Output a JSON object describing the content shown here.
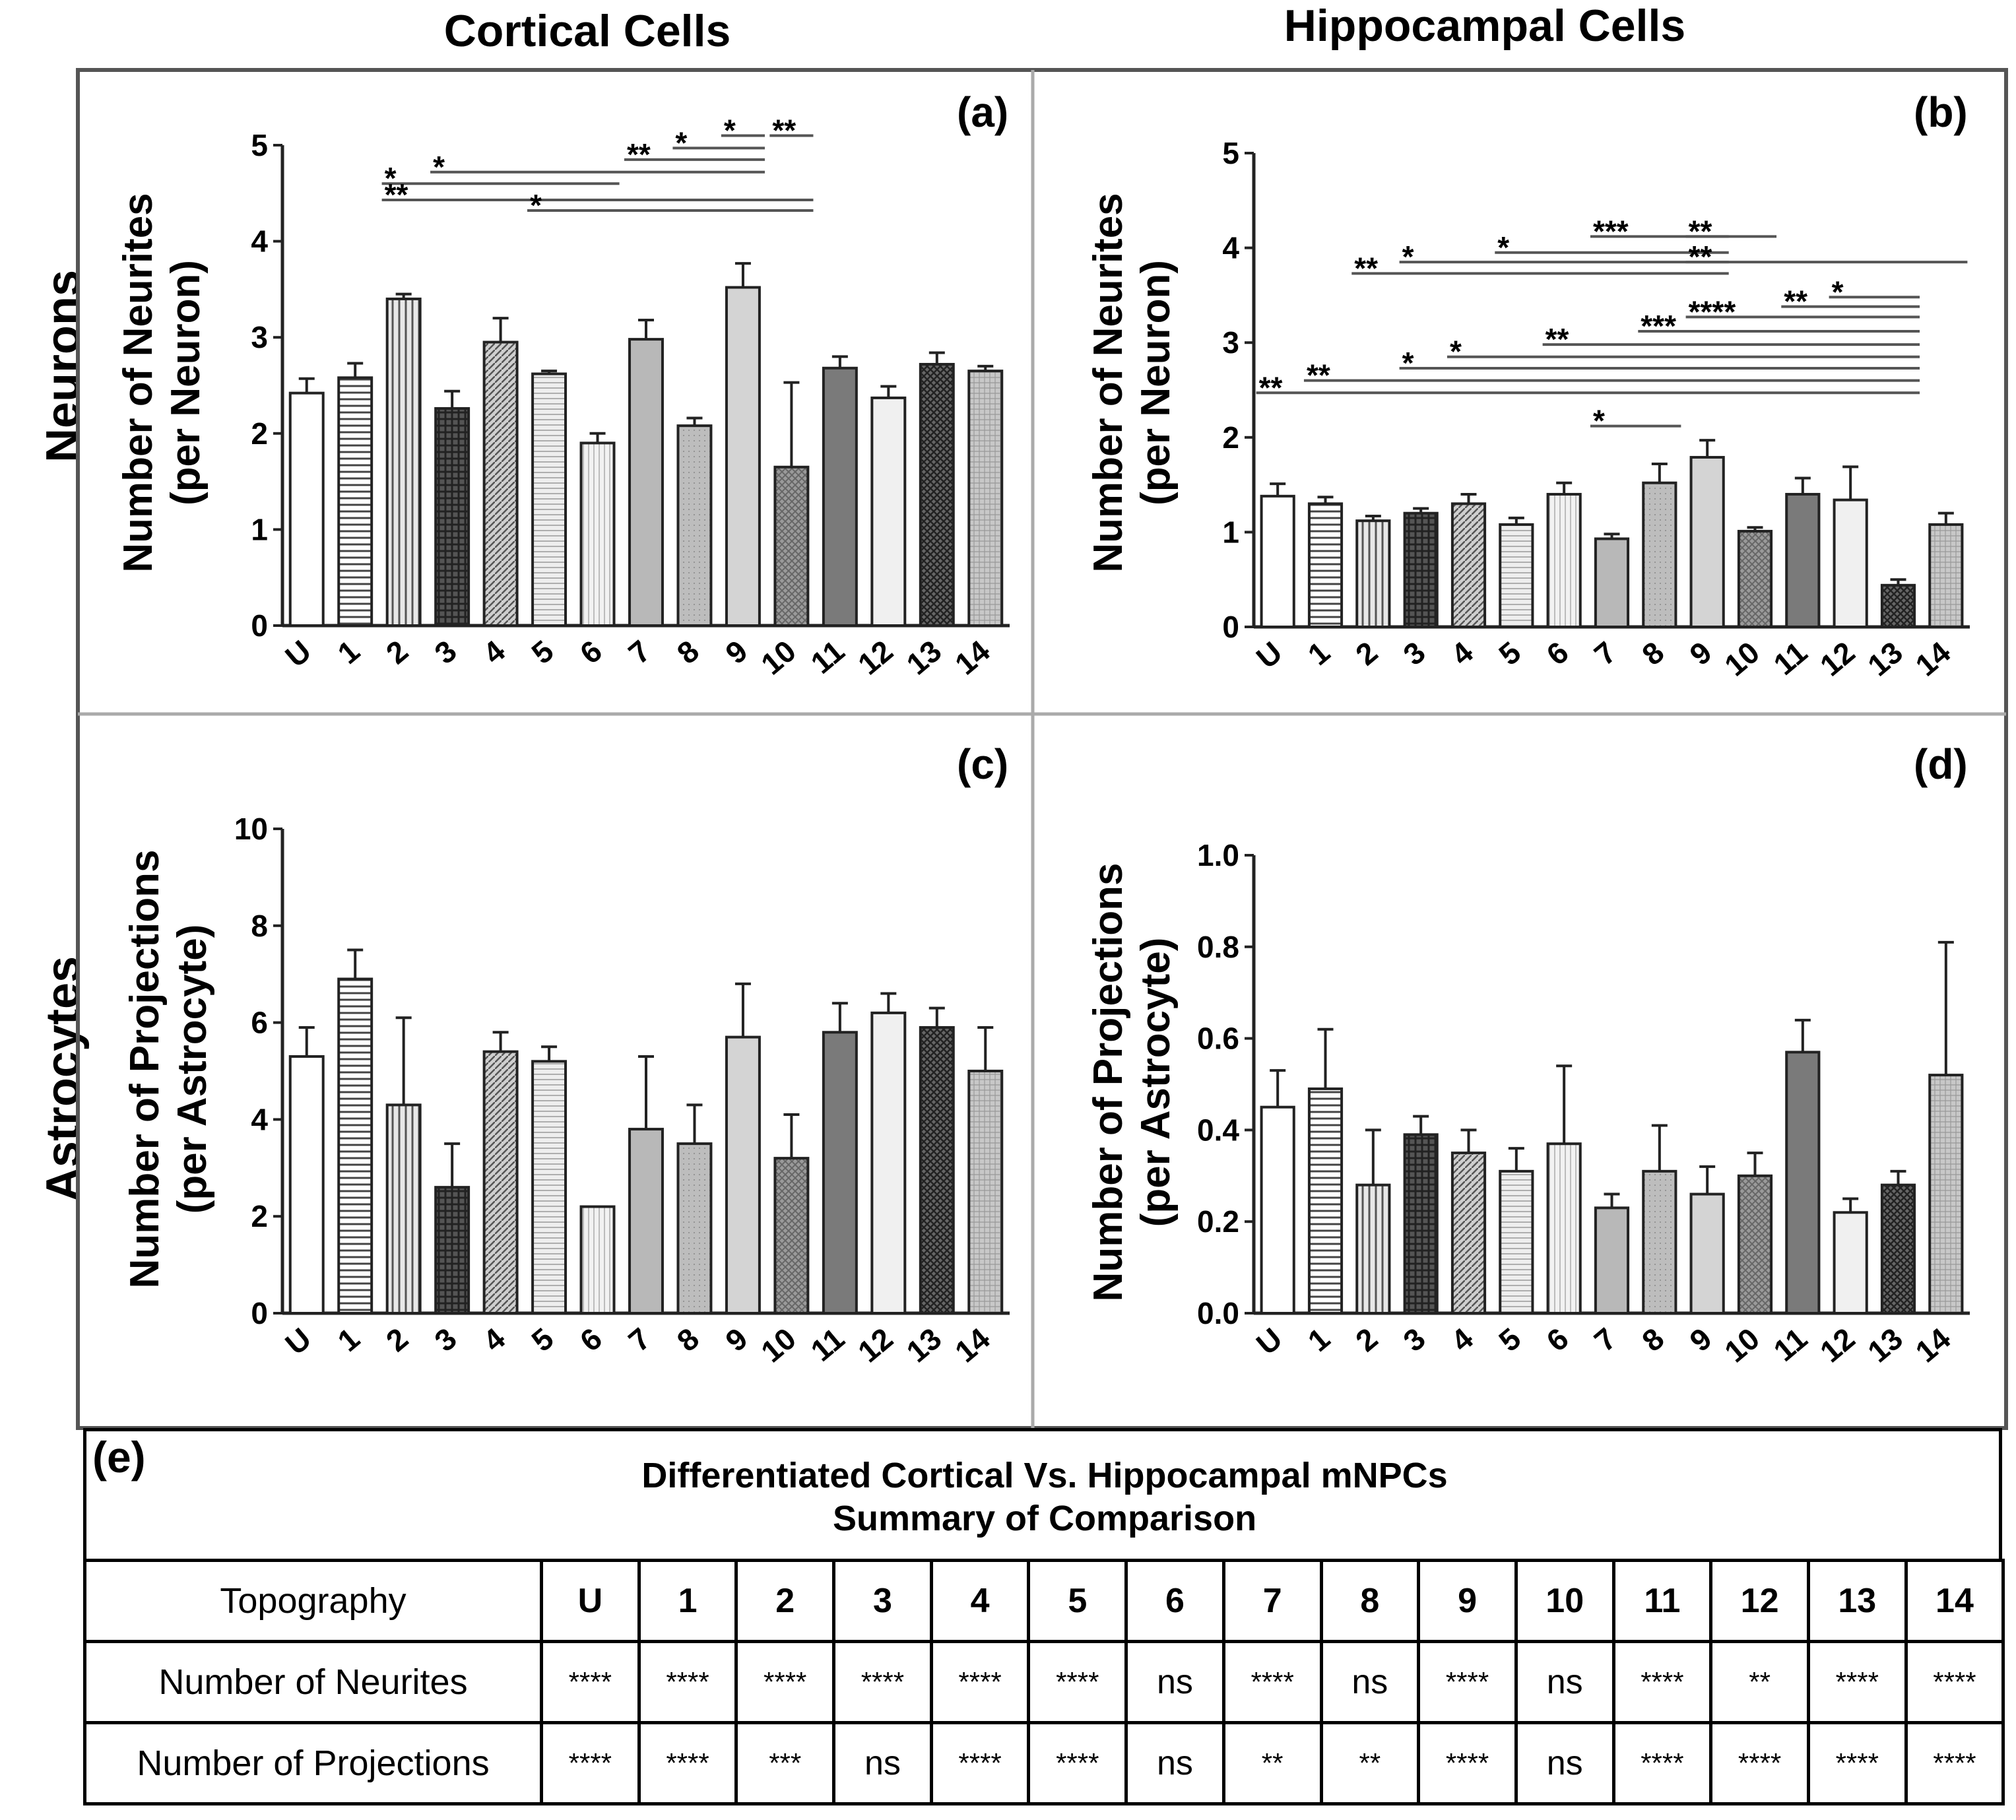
{
  "column_titles": {
    "left": "Cortical Cells",
    "right": "Hippocampal Cells"
  },
  "row_titles": {
    "top": "Neurons",
    "bottom": "Astrocytes"
  },
  "panel_letters": [
    "(a)",
    "(b)",
    "(c)",
    "(d)",
    "(e)"
  ],
  "colors": {
    "border": "#555555",
    "divider": "#aaaaaa",
    "bar_edge": "#222222",
    "bracket": "#555555"
  },
  "chart_data": [
    {
      "panel": "(a)",
      "type": "bar",
      "title": "Cortical Cells - Neurons",
      "ylabel_line1": "Number of Neurites",
      "ylabel_line2": "(per Neuron)",
      "ylim": [
        0,
        5
      ],
      "yticks": [
        "0",
        "1",
        "2",
        "3",
        "4",
        "5"
      ],
      "ytick_values": [
        0,
        1,
        2,
        3,
        4,
        5
      ],
      "categories": [
        "U",
        "1",
        "2",
        "3",
        "4",
        "5",
        "6",
        "7",
        "8",
        "9",
        "10",
        "11",
        "12",
        "13",
        "14"
      ],
      "values": [
        2.42,
        2.58,
        3.4,
        2.26,
        2.95,
        2.62,
        1.9,
        2.98,
        2.08,
        3.52,
        1.65,
        2.68,
        2.37,
        2.72,
        2.65
      ],
      "errors": [
        0.15,
        0.15,
        0.05,
        0.18,
        0.25,
        0.03,
        0.1,
        0.2,
        0.08,
        0.25,
        0.88,
        0.12,
        0.12,
        0.12,
        0.05
      ],
      "significance": [
        {
          "from": 2,
          "to": 6,
          "label": "*",
          "value": 4.6
        },
        {
          "from": 2,
          "to": 10,
          "label": "**",
          "value": 4.43
        },
        {
          "from": 3,
          "to": 9,
          "label": "*",
          "value": 4.72
        },
        {
          "from": 5,
          "to": 10,
          "label": "*",
          "value": 4.32
        },
        {
          "from": 7,
          "to": 9,
          "label": "**",
          "value": 4.85
        },
        {
          "from": 8,
          "to": 9,
          "label": "*",
          "value": 4.97
        },
        {
          "from": 9,
          "to": 9,
          "label": "*",
          "value": 5.1
        },
        {
          "from": 10,
          "to": 10,
          "label": "**",
          "value": 5.1
        }
      ]
    },
    {
      "panel": "(b)",
      "type": "bar",
      "title": "Hippocampal Cells - Neurons",
      "ylabel_line1": "Number of Neurites",
      "ylabel_line2": "(per Neuron)",
      "ylim": [
        0,
        5
      ],
      "yticks": [
        "0",
        "1",
        "2",
        "3",
        "4",
        "5"
      ],
      "ytick_values": [
        0,
        1,
        2,
        3,
        4,
        5
      ],
      "categories": [
        "U",
        "1",
        "2",
        "3",
        "4",
        "5",
        "6",
        "7",
        "8",
        "9",
        "10",
        "11",
        "12",
        "13",
        "14"
      ],
      "values": [
        1.38,
        1.3,
        1.12,
        1.2,
        1.3,
        1.08,
        1.4,
        0.93,
        1.52,
        1.79,
        1.01,
        1.4,
        1.34,
        0.44,
        1.08
      ],
      "errors": [
        0.13,
        0.07,
        0.05,
        0.05,
        0.1,
        0.07,
        0.12,
        0.05,
        0.2,
        0.18,
        0.04,
        0.17,
        0.35,
        0.06,
        0.12
      ],
      "significance": [
        {
          "from": 7,
          "to": 9,
          "label": "***",
          "value": 4.12
        },
        {
          "from": 9,
          "to": 10,
          "label": "**",
          "value": 4.12
        },
        {
          "from": 5,
          "to": 9,
          "label": "*",
          "value": 3.95
        },
        {
          "from": 3,
          "to": 9,
          "label": "*",
          "value": 3.85
        },
        {
          "from": 2,
          "to": 9,
          "label": "**",
          "value": 3.73
        },
        {
          "from": 9,
          "to": 14,
          "label": "**",
          "value": 3.85
        },
        {
          "from": 12,
          "to": 13,
          "label": "*",
          "value": 3.48
        },
        {
          "from": 11,
          "to": 13,
          "label": "**",
          "value": 3.38
        },
        {
          "from": 9,
          "to": 13,
          "label": "****",
          "value": 3.27
        },
        {
          "from": 8,
          "to": 13,
          "label": "***",
          "value": 3.12
        },
        {
          "from": 6,
          "to": 13,
          "label": "**",
          "value": 2.98
        },
        {
          "from": 4,
          "to": 13,
          "label": "*",
          "value": 2.85
        },
        {
          "from": 3,
          "to": 13,
          "label": "*",
          "value": 2.73
        },
        {
          "from": 1,
          "to": 13,
          "label": "**",
          "value": 2.6
        },
        {
          "from": 0,
          "to": 13,
          "label": "**",
          "value": 2.47
        },
        {
          "from": 7,
          "to": 8,
          "label": "*",
          "value": 2.12
        }
      ]
    },
    {
      "panel": "(c)",
      "type": "bar",
      "title": "Cortical Cells - Astrocytes",
      "ylabel_line1": "Number of Projections",
      "ylabel_line2": "(per Astrocyte)",
      "ylim": [
        0,
        10
      ],
      "yticks": [
        "0",
        "2",
        "4",
        "6",
        "8",
        "10"
      ],
      "ytick_values": [
        0,
        2,
        4,
        6,
        8,
        10
      ],
      "categories": [
        "U",
        "1",
        "2",
        "3",
        "4",
        "5",
        "6",
        "7",
        "8",
        "9",
        "10",
        "11",
        "12",
        "13",
        "14"
      ],
      "values": [
        5.3,
        6.9,
        4.3,
        2.6,
        5.4,
        5.2,
        2.2,
        3.8,
        3.5,
        5.7,
        3.2,
        5.8,
        6.2,
        5.9,
        5.0
      ],
      "errors": [
        0.6,
        0.6,
        1.8,
        0.9,
        0.4,
        0.3,
        0.0,
        1.5,
        0.8,
        1.1,
        0.9,
        0.6,
        0.4,
        0.4,
        0.9
      ],
      "significance": []
    },
    {
      "panel": "(d)",
      "type": "bar",
      "title": "Hippocampal Cells - Astrocytes",
      "ylabel_line1": "Number of Projections",
      "ylabel_line2": "(per Astrocyte)",
      "ylim": [
        0,
        1.0
      ],
      "yticks": [
        "0.0",
        "0.2",
        "0.4",
        "0.6",
        "0.8",
        "1.0"
      ],
      "ytick_values": [
        0,
        0.2,
        0.4,
        0.6,
        0.8,
        1.0
      ],
      "categories": [
        "U",
        "1",
        "2",
        "3",
        "4",
        "5",
        "6",
        "7",
        "8",
        "9",
        "10",
        "11",
        "12",
        "13",
        "14"
      ],
      "values": [
        0.45,
        0.49,
        0.28,
        0.39,
        0.35,
        0.31,
        0.37,
        0.23,
        0.31,
        0.26,
        0.3,
        0.57,
        0.22,
        0.28,
        0.52
      ],
      "errors": [
        0.08,
        0.13,
        0.12,
        0.04,
        0.05,
        0.05,
        0.17,
        0.03,
        0.1,
        0.06,
        0.05,
        0.07,
        0.03,
        0.03,
        0.29
      ],
      "significance": []
    }
  ],
  "summary_table": {
    "title_line1": "Differentiated Cortical Vs. Hippocampal mNPCs",
    "title_line2": "Summary of Comparison",
    "header_label": "Topography",
    "columns": [
      "U",
      "1",
      "2",
      "3",
      "4",
      "5",
      "6",
      "7",
      "8",
      "9",
      "10",
      "11",
      "12",
      "13",
      "14"
    ],
    "rows": [
      {
        "label": "Number of Neurites",
        "cells": [
          "****",
          "****",
          "****",
          "****",
          "****",
          "****",
          "ns",
          "****",
          "ns",
          "****",
          "ns",
          "****",
          "**",
          "****",
          "****"
        ]
      },
      {
        "label": "Number of Projections",
        "cells": [
          "****",
          "****",
          "***",
          "ns",
          "****",
          "****",
          "ns",
          "**",
          "**",
          "****",
          "ns",
          "****",
          "****",
          "****",
          "****"
        ]
      }
    ]
  }
}
